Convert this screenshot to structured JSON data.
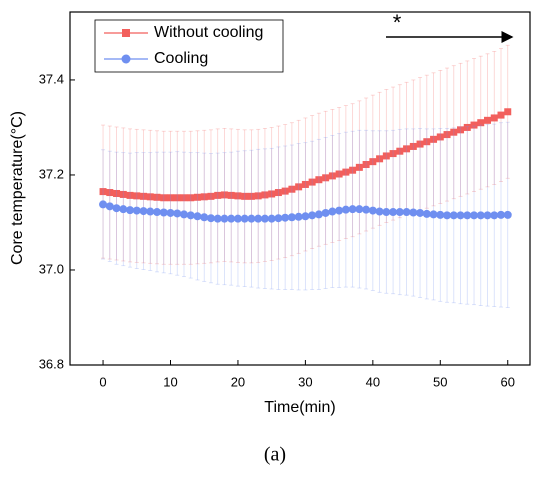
{
  "chart_data": {
    "type": "line",
    "xlabel": "Time(min)",
    "ylabel": "Core temperature(°C)",
    "annotation": "*",
    "caption": "(a)",
    "x": [
      0,
      1,
      2,
      3,
      4,
      5,
      6,
      7,
      8,
      9,
      10,
      11,
      12,
      13,
      14,
      15,
      16,
      17,
      18,
      19,
      20,
      21,
      22,
      23,
      24,
      25,
      26,
      27,
      28,
      29,
      30,
      31,
      32,
      33,
      34,
      35,
      36,
      37,
      38,
      39,
      40,
      41,
      42,
      43,
      44,
      45,
      46,
      47,
      48,
      49,
      50,
      51,
      52,
      53,
      54,
      55,
      56,
      57,
      58,
      59,
      60
    ],
    "xlim": [
      -4.9,
      63.3
    ],
    "xticks": [
      0,
      10,
      20,
      30,
      40,
      50,
      60
    ],
    "ylim": [
      36.8,
      37.543
    ],
    "yticks": [
      36.8,
      {
        "value": 37.0,
        "label": "37.0"
      },
      37.2,
      37.4
    ],
    "legend": "upper left",
    "series": [
      {
        "name": "Without cooling",
        "color": "#f25f5c",
        "marker": "square",
        "values": [
          37.165,
          37.163,
          37.161,
          37.159,
          37.157,
          37.156,
          37.155,
          37.154,
          37.153,
          37.152,
          37.152,
          37.152,
          37.152,
          37.152,
          37.153,
          37.154,
          37.155,
          37.157,
          37.158,
          37.157,
          37.156,
          37.155,
          37.155,
          37.156,
          37.158,
          37.16,
          37.163,
          37.166,
          37.17,
          37.175,
          37.18,
          37.185,
          37.19,
          37.194,
          37.198,
          37.202,
          37.206,
          37.21,
          37.216,
          37.222,
          37.228,
          37.234,
          37.24,
          37.245,
          37.25,
          37.255,
          37.26,
          37.265,
          37.27,
          37.275,
          37.28,
          37.285,
          37.29,
          37.295,
          37.3,
          37.305,
          37.31,
          37.315,
          37.32,
          37.326,
          37.333
        ],
        "errors": [
          0.14,
          0.14,
          0.14,
          0.14,
          0.14,
          0.14,
          0.14,
          0.14,
          0.14,
          0.14,
          0.14,
          0.14,
          0.14,
          0.14,
          0.14,
          0.14,
          0.14,
          0.14,
          0.14,
          0.14,
          0.14,
          0.14,
          0.14,
          0.14,
          0.14,
          0.14,
          0.14,
          0.14,
          0.14,
          0.14,
          0.14,
          0.14,
          0.14,
          0.14,
          0.14,
          0.14,
          0.14,
          0.14,
          0.14,
          0.14,
          0.14,
          0.14,
          0.14,
          0.14,
          0.14,
          0.14,
          0.14,
          0.14,
          0.14,
          0.14,
          0.14,
          0.14,
          0.14,
          0.14,
          0.14,
          0.14,
          0.14,
          0.14,
          0.14,
          0.14,
          0.14
        ]
      },
      {
        "name": "Cooling",
        "color": "#6f8ff0",
        "marker": "circle",
        "values": [
          37.138,
          37.134,
          37.13,
          37.128,
          37.126,
          37.125,
          37.124,
          37.123,
          37.122,
          37.121,
          37.12,
          37.119,
          37.117,
          37.115,
          37.113,
          37.111,
          37.109,
          37.108,
          37.108,
          37.108,
          37.108,
          37.108,
          37.108,
          37.108,
          37.108,
          37.108,
          37.109,
          37.11,
          37.111,
          37.112,
          37.113,
          37.115,
          37.117,
          37.12,
          37.123,
          37.125,
          37.127,
          37.128,
          37.128,
          37.127,
          37.125,
          37.123,
          37.122,
          37.122,
          37.122,
          37.122,
          37.121,
          37.12,
          37.118,
          37.117,
          37.116,
          37.115,
          37.115,
          37.115,
          37.115,
          37.115,
          37.115,
          37.115,
          37.115,
          37.116,
          37.116
        ],
        "errors": [
          0.115,
          0.116,
          0.118,
          0.119,
          0.12,
          0.122,
          0.123,
          0.124,
          0.126,
          0.127,
          0.128,
          0.13,
          0.131,
          0.132,
          0.134,
          0.135,
          0.136,
          0.138,
          0.139,
          0.14,
          0.142,
          0.143,
          0.144,
          0.146,
          0.147,
          0.148,
          0.15,
          0.151,
          0.152,
          0.154,
          0.155,
          0.156,
          0.158,
          0.159,
          0.16,
          0.162,
          0.163,
          0.164,
          0.166,
          0.167,
          0.168,
          0.17,
          0.171,
          0.172,
          0.174,
          0.175,
          0.176,
          0.178,
          0.179,
          0.18,
          0.182,
          0.183,
          0.184,
          0.186,
          0.187,
          0.188,
          0.19,
          0.191,
          0.192,
          0.194,
          0.195
        ]
      }
    ]
  }
}
